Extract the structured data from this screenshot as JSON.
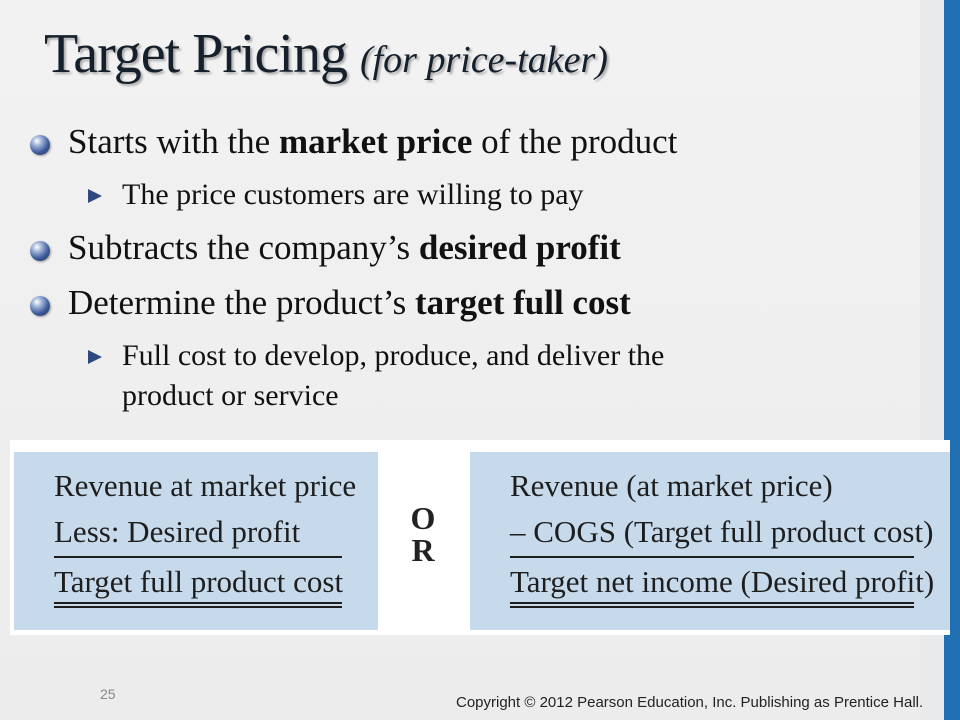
{
  "title": {
    "main": "Target Pricing",
    "sub": "(for price-taker)"
  },
  "bullets": [
    {
      "pre": "Starts with the ",
      "bold": "market price",
      "post": " of the product"
    },
    {
      "pre": "Subtracts the company’s ",
      "bold": "desired profit",
      "post": ""
    },
    {
      "pre": "Determine the product’s ",
      "bold": "target full cost",
      "post": ""
    }
  ],
  "subbullets": [
    "The price customers are willing to pay",
    "Full cost to develop, produce, and deliver the",
    "product or service"
  ],
  "left_box": {
    "line1": "Revenue at market price",
    "line2": "Less: Desired profit",
    "line3": "Target full product cost"
  },
  "or_text": {
    "o": "O",
    "r": "R"
  },
  "right_box": {
    "line1": "Revenue (at market price)",
    "line2": "– COGS (Target full product cost)",
    "line3": "Target net income (Desired profit)"
  },
  "footer": {
    "page_number": "25",
    "copyright": "Copyright © 2012 Pearson Education, Inc. Publishing as Prentice Hall."
  },
  "colors": {
    "accent_stripe": "#1f6fb2",
    "box_fill": "#c7daec"
  }
}
